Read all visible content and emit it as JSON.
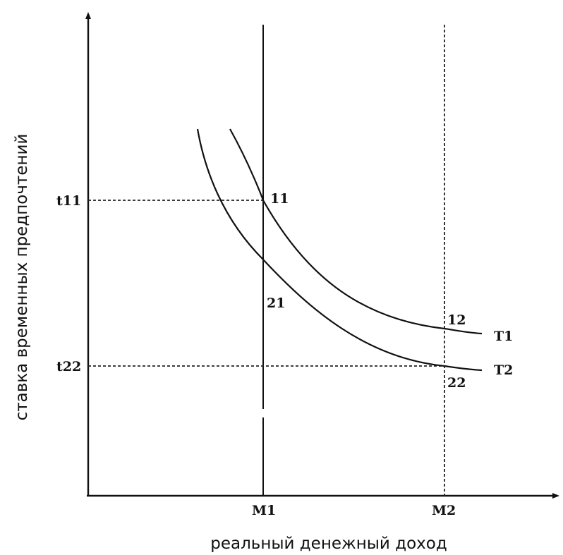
{
  "chart_data": {
    "type": "line",
    "xlabel": "реальный денежный доход",
    "ylabel": "ставка временных предпочтений",
    "x_ticks": [
      "M1",
      "M2"
    ],
    "y_ticks": [
      "t11",
      "t22"
    ],
    "series": [
      {
        "name": "T1",
        "points": [
          {
            "label": "11",
            "x": "M1",
            "y": "t11"
          },
          {
            "label": "12",
            "x": "M2",
            "y": ""
          }
        ]
      },
      {
        "name": "T2",
        "points": [
          {
            "label": "21",
            "x": "M1",
            "y": ""
          },
          {
            "label": "22",
            "x": "M2",
            "y": "t22"
          }
        ]
      }
    ],
    "guides": {
      "vertical_M1": "solid",
      "vertical_M2": "dashed",
      "horizontal_t11": "dashed",
      "horizontal_t22": "dashed"
    },
    "grid": false,
    "axis_ranges": "unscaled (no numeric values shown)"
  },
  "colors": {
    "ink": "#111111",
    "background": "#ffffff"
  }
}
